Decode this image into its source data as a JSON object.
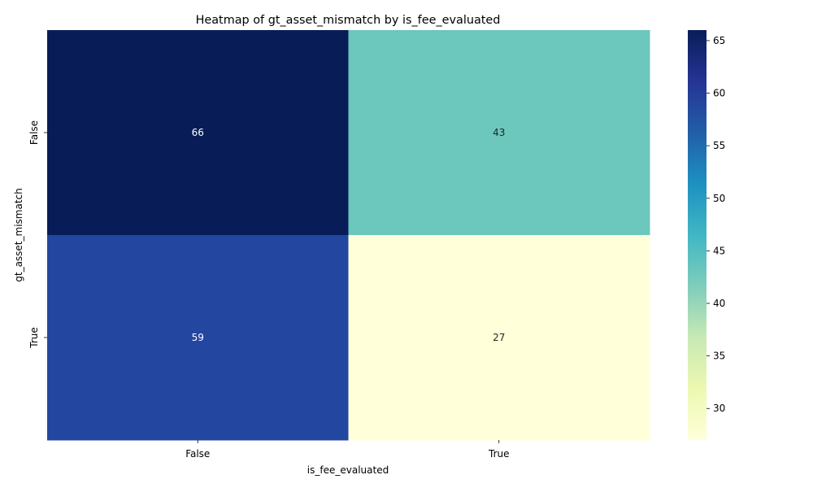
{
  "chart_data": {
    "type": "heatmap",
    "title": "Heatmap of gt_asset_mismatch by is_fee_evaluated",
    "xlabel": "is_fee_evaluated",
    "ylabel": "gt_asset_mismatch",
    "x_categories": [
      "False",
      "True"
    ],
    "y_categories": [
      "False",
      "True"
    ],
    "values": [
      [
        66,
        43
      ],
      [
        59,
        27
      ]
    ],
    "colormap": "YlGnBu",
    "colorbar": {
      "min": 27,
      "max": 66,
      "ticks": [
        "30",
        "35",
        "40",
        "45",
        "50",
        "55",
        "60",
        "65"
      ]
    },
    "cell_colors": [
      [
        "#081d58",
        "#6cc7bd"
      ],
      [
        "#2347a0",
        "#ffffd9"
      ]
    ],
    "text_colors": [
      [
        "#ffffff",
        "#262626"
      ],
      [
        "#ffffff",
        "#262626"
      ]
    ]
  }
}
